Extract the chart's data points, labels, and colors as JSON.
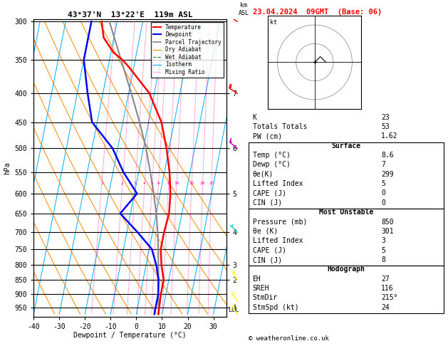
{
  "title_left": "43°37'N  13°22'E  119m ASL",
  "title_right": "23.04.2024  09GMT  (Base: 06)",
  "xlabel": "Dewpoint / Temperature (°C)",
  "ylabel_left": "hPa",
  "pressure_ticks": [
    300,
    350,
    400,
    450,
    500,
    550,
    600,
    650,
    700,
    750,
    800,
    850,
    900,
    950
  ],
  "isotherm_color": "#00aaff",
  "dry_adiabat_color": "#ff8800",
  "wet_adiabat_color": "#008800",
  "mixing_ratio_color": "#ff00aa",
  "temperature_color": "#ff0000",
  "dewpoint_color": "#0000ff",
  "parcel_color": "#888888",
  "temp_data": {
    "pressure": [
      300,
      320,
      340,
      350,
      360,
      400,
      450,
      500,
      550,
      600,
      650,
      700,
      750,
      800,
      850,
      900,
      950,
      975
    ],
    "temperature": [
      -36,
      -34,
      -29,
      -25,
      -22,
      -12,
      -5,
      -1,
      2,
      4,
      5,
      4.5,
      4.5,
      6,
      8,
      8,
      8.4,
      8.6
    ]
  },
  "dewpoint_data": {
    "pressure": [
      300,
      350,
      400,
      450,
      500,
      550,
      600,
      650,
      700,
      750,
      800,
      850,
      900,
      950,
      975
    ],
    "dewpoint": [
      -40,
      -40,
      -36,
      -32,
      -22,
      -16,
      -9,
      -14,
      -6,
      1,
      4,
      6,
      7,
      7,
      7
    ]
  },
  "parcel_data": {
    "pressure": [
      975,
      950,
      900,
      850,
      800,
      750,
      700,
      650,
      600,
      550,
      500,
      450,
      400,
      350,
      300
    ],
    "temperature": [
      8.6,
      8.2,
      7.0,
      6.0,
      4.8,
      3.5,
      2.0,
      0.0,
      -2.5,
      -5.5,
      -9.0,
      -13.5,
      -19.0,
      -25.5,
      -33.0
    ]
  },
  "km_ticks": {
    "pressure": [
      400,
      500,
      600,
      700,
      800,
      850,
      950
    ],
    "km": [
      7,
      6,
      5,
      4,
      3,
      2,
      1
    ]
  },
  "lcl_pressure": 960,
  "P_min": 300,
  "P_max": 975,
  "T_min": -40,
  "T_max": 35,
  "skew_factor": 22.5,
  "wind_barbs": {
    "pressure": [
      975,
      925,
      850,
      700,
      500,
      400,
      300
    ],
    "colors": [
      "#ffff00",
      "#ffff00",
      "#ffff00",
      "#00cccc",
      "#cc00cc",
      "#ff0000",
      "#ff0000"
    ],
    "u": [
      2,
      2,
      3,
      5,
      10,
      15,
      18
    ],
    "v": [
      -3,
      -3,
      -5,
      -5,
      -8,
      -10,
      -12
    ]
  },
  "info_rows_top": [
    [
      "K",
      "23"
    ],
    [
      "Totals Totals",
      "53"
    ],
    [
      "PW (cm)",
      "1.62"
    ]
  ],
  "surface_rows": [
    [
      "Temp (°C)",
      "8.6"
    ],
    [
      "Dewp (°C)",
      "7"
    ],
    [
      "θe(K)",
      "299"
    ],
    [
      "Lifted Index",
      "5"
    ],
    [
      "CAPE (J)",
      "0"
    ],
    [
      "CIN (J)",
      "0"
    ]
  ],
  "mu_rows": [
    [
      "Pressure (mb)",
      "850"
    ],
    [
      "θe (K)",
      "301"
    ],
    [
      "Lifted Index",
      "3"
    ],
    [
      "CAPE (J)",
      "5"
    ],
    [
      "CIN (J)",
      "8"
    ]
  ],
  "hodo_rows": [
    [
      "EH",
      "27"
    ],
    [
      "SREH",
      "116"
    ],
    [
      "StmDir",
      "215°"
    ],
    [
      "StmSpd (kt)",
      "24"
    ]
  ],
  "copyright": "© weatheronline.co.uk"
}
